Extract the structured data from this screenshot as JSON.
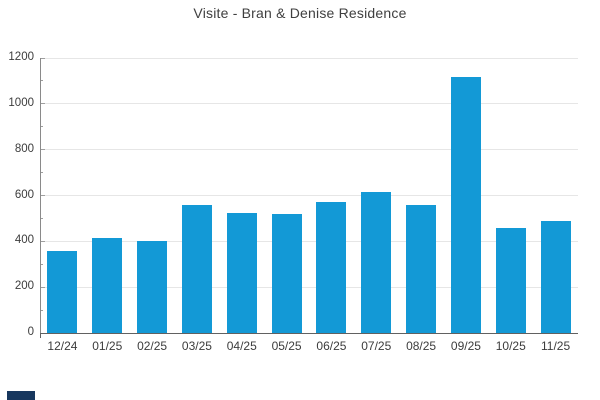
{
  "title": "Visite - Bran & Denise Residence",
  "colors": {
    "bar": "#1399d6",
    "grid": "#e6e6e6",
    "y_axis": "#8a8a8a",
    "x_axis": "#616161",
    "tick": "#9e9e9e",
    "text": "#3c3c3c",
    "title_text": "#3f3f3f",
    "corner_swatch": "#17375e",
    "background": "#ffffff"
  },
  "chart_data": {
    "type": "bar",
    "title": "Visite - Bran & Denise Residence",
    "categories": [
      "12/24",
      "01/25",
      "02/25",
      "03/25",
      "04/25",
      "05/25",
      "06/25",
      "07/25",
      "08/25",
      "09/25",
      "10/25",
      "11/25"
    ],
    "values": [
      360,
      415,
      400,
      557,
      523,
      520,
      572,
      615,
      560,
      1115,
      457,
      487
    ],
    "xlabel": "",
    "ylabel": "",
    "ylim": [
      0,
      1200
    ],
    "yticks": [
      0,
      200,
      400,
      600,
      800,
      1000,
      1200
    ],
    "minor_ticks": [
      100,
      300,
      500,
      700,
      900,
      1100
    ],
    "grid": true,
    "legend": "none",
    "series_name": "Visite"
  }
}
